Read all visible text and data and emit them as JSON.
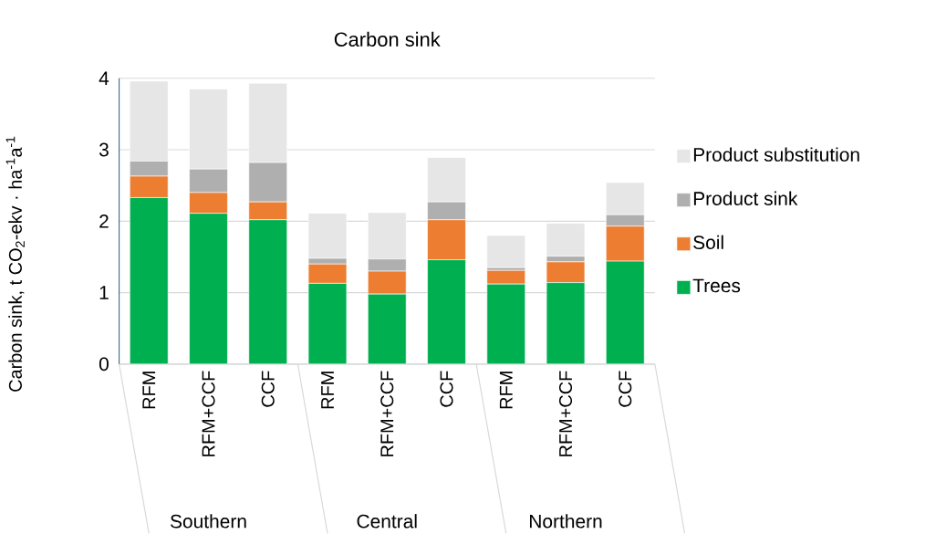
{
  "chart_data": {
    "type": "bar",
    "title": "Carbon sink",
    "ylabel": "Carbon sink, t CO$_{2}$-ekv · ha$^{-1}$a$^{-1}$",
    "categories": [
      "RFM",
      "RFM+CCF",
      "CCF",
      "RFM",
      "RFM+CCF",
      "CCF",
      "RFM",
      "RFM+CCF",
      "CCF"
    ],
    "annotations": [
      "Southern",
      "Central",
      "Northern"
    ],
    "stacked": true,
    "series": [
      {
        "name": "Trees",
        "color": "#00b050",
        "values": [
          2.33,
          2.11,
          2.02,
          1.13,
          0.98,
          1.46,
          1.12,
          1.14,
          1.44
        ]
      },
      {
        "name": "Soil",
        "color": "#ed7d31",
        "values": [
          0.3,
          0.29,
          0.25,
          0.27,
          0.32,
          0.56,
          0.19,
          0.29,
          0.49
        ]
      },
      {
        "name": "Product sink",
        "color": "#afafaf",
        "values": [
          0.21,
          0.33,
          0.55,
          0.08,
          0.17,
          0.25,
          0.04,
          0.08,
          0.16
        ]
      },
      {
        "name": "Product substitution",
        "color": "#e7e6e6",
        "values": [
          1.12,
          1.12,
          1.11,
          0.63,
          0.65,
          0.62,
          0.45,
          0.46,
          0.45
        ]
      }
    ],
    "ylim": [
      0,
      4
    ],
    "yticks": [
      0,
      1,
      2,
      3,
      4
    ],
    "grid": "y",
    "legend": "right"
  }
}
